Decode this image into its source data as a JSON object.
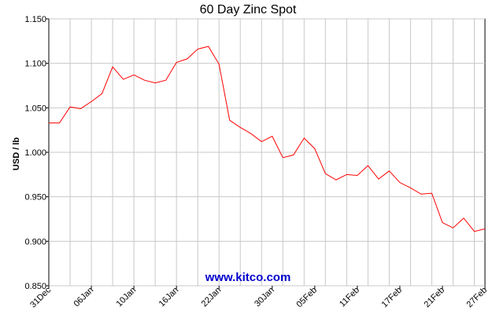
{
  "chart_data": {
    "type": "line",
    "title": "60 Day Zinc Spot",
    "xlabel": "",
    "ylabel": "USD / lb",
    "ylim": [
      0.85,
      1.15
    ],
    "yticks": [
      "0.850",
      "0.900",
      "0.950",
      "1.000",
      "1.050",
      "1.100",
      "1.150"
    ],
    "xticks": [
      {
        "label": "31Dec",
        "index": 0
      },
      {
        "label": "06Jan",
        "index": 4
      },
      {
        "label": "10Jan",
        "index": 8
      },
      {
        "label": "16Jan",
        "index": 12
      },
      {
        "label": "22Jan",
        "index": 16
      },
      {
        "label": "30Jan",
        "index": 21
      },
      {
        "label": "05Feb",
        "index": 25
      },
      {
        "label": "11Feb",
        "index": 29
      },
      {
        "label": "17Feb",
        "index": 33
      },
      {
        "label": "21Feb",
        "index": 37
      },
      {
        "label": "27Feb",
        "index": 41
      }
    ],
    "grid": true,
    "series": [
      {
        "color": "#ff0000",
        "values": [
          1.033,
          1.033,
          1.051,
          1.049,
          1.057,
          1.066,
          1.096,
          1.082,
          1.087,
          1.081,
          1.078,
          1.081,
          1.101,
          1.105,
          1.116,
          1.119,
          1.099,
          1.036,
          1.028,
          1.021,
          1.012,
          1.018,
          0.994,
          0.997,
          1.016,
          1.004,
          0.976,
          0.969,
          0.975,
          0.974,
          0.985,
          0.97,
          0.979,
          0.966,
          0.96,
          0.953,
          0.954,
          0.921,
          0.915,
          0.926,
          0.911,
          0.914
        ]
      }
    ]
  },
  "watermark": "www.kitco.com"
}
